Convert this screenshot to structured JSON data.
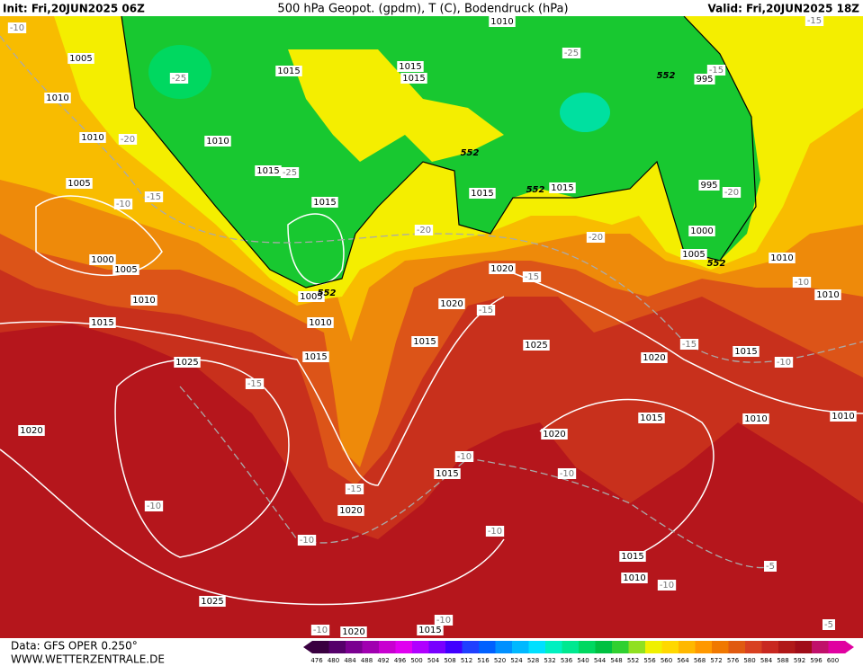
{
  "header": {
    "init": "Init: Fri,20JUN2025 06Z",
    "title": "500 hPa Geopot. (gpdm), T (C), Bodendruck (hPa)",
    "valid": "Valid: Fri,20JUN2025 18Z"
  },
  "footer": {
    "source": "Data: GFS OPER 0.250°",
    "website": "WWW.WETTERZENTRALE.DE"
  },
  "colorbar": {
    "labels": [
      476,
      480,
      484,
      488,
      492,
      496,
      500,
      504,
      508,
      512,
      516,
      520,
      524,
      528,
      532,
      536,
      540,
      544,
      548,
      552,
      556,
      560,
      564,
      568,
      572,
      576,
      580,
      584,
      588,
      592,
      596,
      600
    ],
    "colors": [
      "#3a0040",
      "#55006a",
      "#7a0090",
      "#a000b0",
      "#c800d0",
      "#e000f0",
      "#b000ff",
      "#7800ff",
      "#4000ff",
      "#2040ff",
      "#0060ff",
      "#0090ff",
      "#00b8ff",
      "#00e0ff",
      "#00f0c0",
      "#00e890",
      "#00d860",
      "#00c040",
      "#30d030",
      "#90e020",
      "#f0f000",
      "#ffd800",
      "#ffb800",
      "#ff9800",
      "#f07800",
      "#e05a10",
      "#d84020",
      "#c82820",
      "#b01818",
      "#a00c18",
      "#c0106a",
      "#e000a0"
    ]
  },
  "map": {
    "isobar_labels": [
      1005,
      1010,
      1010,
      1010,
      1015,
      1015,
      1015,
      1010,
      995,
      1015,
      1015,
      1005,
      1000,
      1005,
      1010,
      1015,
      1005,
      1010,
      1015,
      1020,
      1015,
      1020,
      1015,
      1015,
      995,
      1000,
      1005,
      1010,
      1010,
      1025,
      1020,
      1025,
      1020,
      1015,
      1015,
      1010,
      1010,
      1020,
      1015,
      1020,
      1015,
      1010,
      1025,
      1020,
      1015
    ],
    "temperature_labels": [
      -10,
      -20,
      -25,
      -25,
      -15,
      -10,
      -25,
      -15,
      -15,
      -20,
      -20,
      -20,
      -15,
      -15,
      -10,
      -15,
      -10,
      -15,
      -10,
      -10,
      -15,
      -10,
      -10,
      -10,
      -5,
      -10,
      -10,
      -10,
      -5
    ],
    "geopotential_labels": [
      552,
      552,
      552,
      552,
      552
    ]
  }
}
